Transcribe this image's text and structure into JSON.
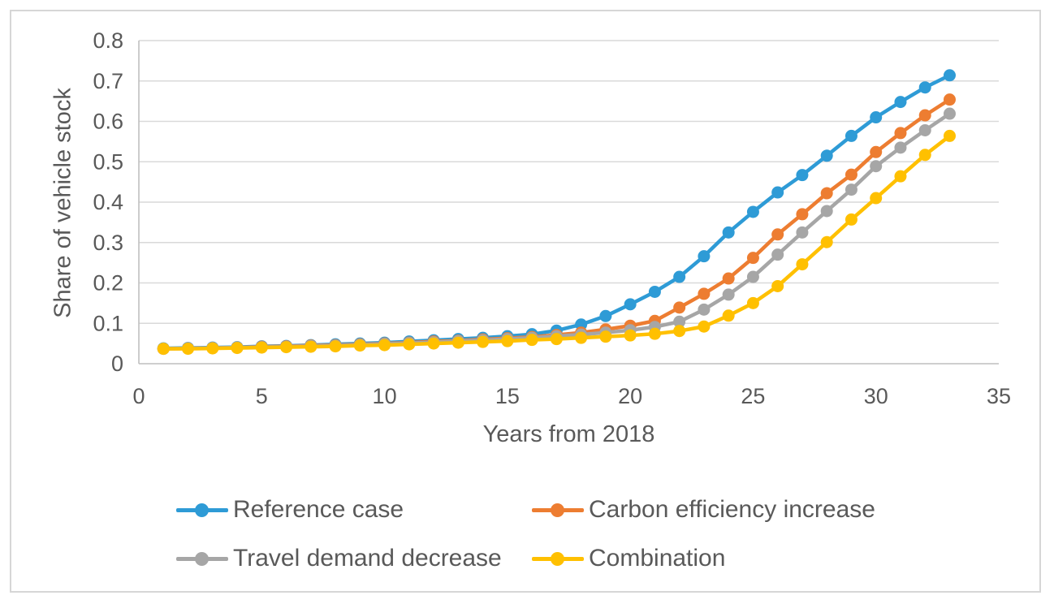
{
  "figure": {
    "background": "#ffffff",
    "border_color": "#d6d6d6"
  },
  "chart_data": {
    "type": "line",
    "title": "",
    "xlabel": "Years from 2018",
    "ylabel": "Share of vehicle stock",
    "xlim": [
      0,
      35
    ],
    "ylim": [
      0,
      0.8
    ],
    "xticks": [
      0,
      5,
      10,
      15,
      20,
      25,
      30,
      35
    ],
    "yticks": [
      0,
      0.1,
      0.2,
      0.3,
      0.4,
      0.5,
      0.6,
      0.7,
      0.8
    ],
    "ytick_labels": [
      "0",
      "0.1",
      "0.2",
      "0.3",
      "0.4",
      "0.5",
      "0.6",
      "0.7",
      "0.8"
    ],
    "grid": "horizontal gridlines only",
    "legend_position": "bottom, two columns",
    "marker": "circle",
    "axis_text_color": "#595959",
    "gridline_color": "#d9d9d9",
    "axis_line_color": "#bfbfbf",
    "x": [
      1,
      2,
      3,
      4,
      5,
      6,
      7,
      8,
      9,
      10,
      11,
      12,
      13,
      14,
      15,
      16,
      17,
      18,
      19,
      20,
      21,
      22,
      23,
      24,
      25,
      26,
      27,
      28,
      29,
      30,
      31,
      32,
      33
    ],
    "series": [
      {
        "name": "Reference case",
        "color": "#2E9BD6",
        "values": [
          0.038,
          0.039,
          0.04,
          0.041,
          0.043,
          0.044,
          0.046,
          0.048,
          0.05,
          0.052,
          0.055,
          0.058,
          0.061,
          0.064,
          0.068,
          0.073,
          0.082,
          0.097,
          0.118,
          0.147,
          0.178,
          0.215,
          0.266,
          0.325,
          0.376,
          0.424,
          0.467,
          0.515,
          0.564,
          0.61,
          0.648,
          0.684,
          0.714
        ]
      },
      {
        "name": "Carbon efficiency increase",
        "color": "#ED7D31",
        "values": [
          0.037,
          0.038,
          0.039,
          0.04,
          0.042,
          0.043,
          0.045,
          0.046,
          0.048,
          0.05,
          0.052,
          0.055,
          0.057,
          0.06,
          0.063,
          0.066,
          0.071,
          0.077,
          0.085,
          0.094,
          0.106,
          0.139,
          0.173,
          0.211,
          0.262,
          0.32,
          0.37,
          0.422,
          0.468,
          0.524,
          0.571,
          0.615,
          0.654
        ]
      },
      {
        "name": "Travel demand decrease",
        "color": "#A6A6A6",
        "values": [
          0.037,
          0.038,
          0.039,
          0.04,
          0.041,
          0.042,
          0.044,
          0.045,
          0.047,
          0.049,
          0.051,
          0.053,
          0.056,
          0.058,
          0.061,
          0.064,
          0.068,
          0.072,
          0.077,
          0.083,
          0.091,
          0.104,
          0.134,
          0.171,
          0.215,
          0.27,
          0.325,
          0.378,
          0.431,
          0.489,
          0.535,
          0.578,
          0.619
        ]
      },
      {
        "name": "Combination",
        "color": "#FFC000",
        "values": [
          0.037,
          0.037,
          0.038,
          0.039,
          0.04,
          0.041,
          0.042,
          0.043,
          0.045,
          0.046,
          0.048,
          0.05,
          0.052,
          0.054,
          0.056,
          0.059,
          0.061,
          0.064,
          0.067,
          0.07,
          0.074,
          0.081,
          0.092,
          0.119,
          0.15,
          0.192,
          0.246,
          0.301,
          0.357,
          0.41,
          0.464,
          0.517,
          0.564
        ]
      }
    ]
  }
}
